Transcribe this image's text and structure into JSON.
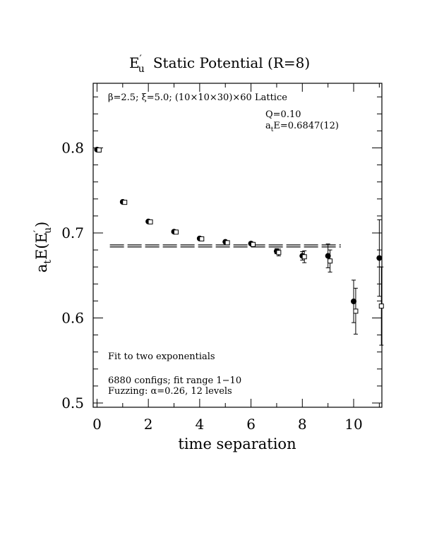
{
  "chart_data": {
    "type": "scatter",
    "title_main": "E",
    "title_sup": "′",
    "title_sub": "u",
    "title_rest": "Static Potential (R=8)",
    "xlabel": "time separation",
    "ylabel_a": "a",
    "ylabel_t": "t",
    "ylabel_E": "E(E",
    "ylabel_sup": "′",
    "ylabel_sub": "u",
    "ylabel_close": ")",
    "xlim": [
      -0.15,
      11.1
    ],
    "ylim": [
      0.495,
      0.876
    ],
    "x_ticks": [
      0,
      2,
      4,
      6,
      8,
      10
    ],
    "x_tick_labels": [
      "0",
      "2",
      "4",
      "6",
      "8",
      "10"
    ],
    "y_ticks": [
      0.5,
      0.6,
      0.7,
      0.8
    ],
    "y_tick_labels": [
      "0.5",
      "0.6",
      "0.7",
      "0.8"
    ],
    "annotations": {
      "lattice": "β=2.5; ξ=5.0; (10×10×30)×60 Lattice",
      "q": "Q=0.10",
      "energy_a": "a",
      "energy_t": "t",
      "energy_rest": "E=0.6847(12)",
      "fit": "Fit to two exponentials",
      "configs": "6880 configs; fit range 1−10",
      "fuzzing": "Fuzzing: α=0.26, 12 levels"
    },
    "fit": {
      "value": 0.6847,
      "error": 0.0012,
      "t_range": [
        0.5,
        9.5
      ]
    },
    "series": [
      {
        "marker": "filled-circle",
        "points": [
          {
            "x": 0,
            "y": 0.798,
            "err": 0.001
          },
          {
            "x": 1,
            "y": 0.7365,
            "err": 0.001
          },
          {
            "x": 2,
            "y": 0.7135,
            "err": 0.001
          },
          {
            "x": 3,
            "y": 0.7015,
            "err": 0.001
          },
          {
            "x": 4,
            "y": 0.6935,
            "err": 0.001
          },
          {
            "x": 5,
            "y": 0.6895,
            "err": 0.0015
          },
          {
            "x": 6,
            "y": 0.6875,
            "err": 0.002
          },
          {
            "x": 7,
            "y": 0.6785,
            "err": 0.003
          },
          {
            "x": 8,
            "y": 0.673,
            "err": 0.005
          },
          {
            "x": 9,
            "y": 0.673,
            "err": 0.014
          },
          {
            "x": 10,
            "y": 0.6195,
            "err": 0.025
          },
          {
            "x": 11,
            "y": 0.6705,
            "err": 0.045
          }
        ]
      },
      {
        "marker": "open-square",
        "points": [
          {
            "x": 0.08,
            "y": 0.7975,
            "err": 0.001
          },
          {
            "x": 1.08,
            "y": 0.736,
            "err": 0.001
          },
          {
            "x": 2.08,
            "y": 0.713,
            "err": 0.001
          },
          {
            "x": 3.08,
            "y": 0.701,
            "err": 0.001
          },
          {
            "x": 4.08,
            "y": 0.693,
            "err": 0.001
          },
          {
            "x": 5.08,
            "y": 0.6885,
            "err": 0.0015
          },
          {
            "x": 6.08,
            "y": 0.6865,
            "err": 0.002
          },
          {
            "x": 7.08,
            "y": 0.677,
            "err": 0.004
          },
          {
            "x": 8.08,
            "y": 0.672,
            "err": 0.007
          },
          {
            "x": 9.08,
            "y": 0.667,
            "err": 0.013
          },
          {
            "x": 10.08,
            "y": 0.608,
            "err": 0.027
          },
          {
            "x": 11.08,
            "y": 0.614,
            "err": 0.046
          }
        ]
      }
    ]
  }
}
